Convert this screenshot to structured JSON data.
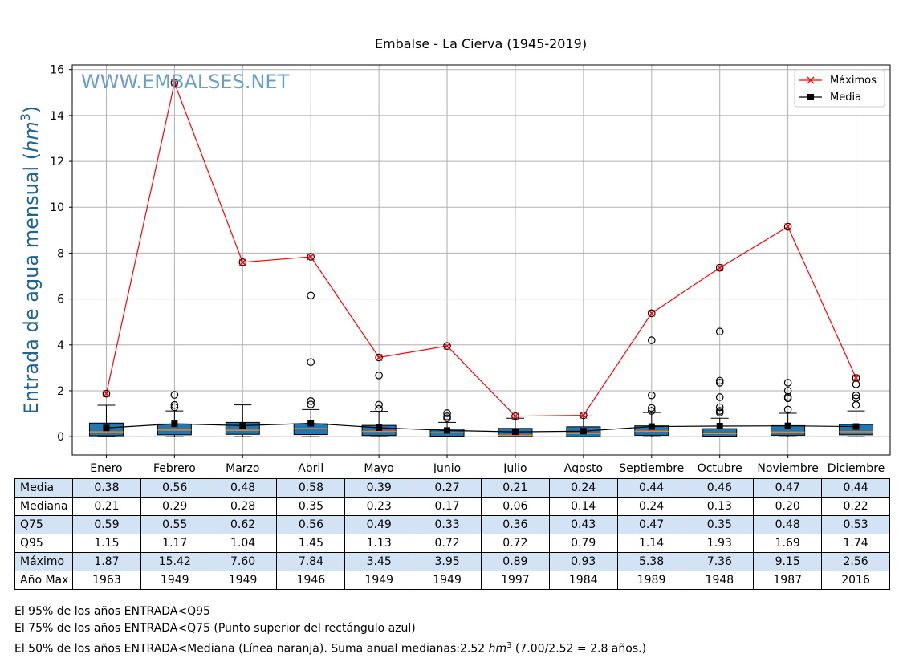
{
  "chart_data": {
    "type": "box",
    "title": "Embalse - La Cierva (1945-2019)",
    "watermark": "WWW.EMBALSES.NET",
    "ylabel_text": "Entrada de agua mensual (",
    "ylabel_unit_base": "hm",
    "ylabel_unit_exp": "3",
    "ylabel_close": ")",
    "xlabel": "",
    "ylim": [
      -0.8,
      16.2
    ],
    "yticks": [
      0,
      2,
      4,
      6,
      8,
      10,
      12,
      14,
      16
    ],
    "grid": true,
    "legend_position": "top-right",
    "categories": [
      "Enero",
      "Febrero",
      "Marzo",
      "Abril",
      "Mayo",
      "Junio",
      "Julio",
      "Agosto",
      "Septiembre",
      "Octubre",
      "Noviembre",
      "Diciembre"
    ],
    "series": [
      {
        "name": "Máximos",
        "color": "#ff0000",
        "marker": "x",
        "values": [
          1.87,
          15.42,
          7.6,
          7.84,
          3.45,
          3.95,
          0.89,
          0.93,
          5.38,
          7.36,
          9.15,
          2.56
        ]
      },
      {
        "name": "Media",
        "color": "#000000",
        "marker": "square",
        "values": [
          0.38,
          0.56,
          0.48,
          0.58,
          0.39,
          0.27,
          0.21,
          0.24,
          0.44,
          0.46,
          0.47,
          0.44
        ]
      }
    ],
    "boxes": [
      {
        "q1": 0.04,
        "median": 0.21,
        "q3": 0.59,
        "whisker_low": 0.0,
        "whisker_high": 1.37,
        "outliers": []
      },
      {
        "q1": 0.08,
        "median": 0.29,
        "q3": 0.55,
        "whisker_low": 0.0,
        "whisker_high": 1.12,
        "outliers": [
          1.28,
          1.38,
          1.82
        ]
      },
      {
        "q1": 0.1,
        "median": 0.28,
        "q3": 0.62,
        "whisker_low": 0.0,
        "whisker_high": 1.38,
        "outliers": []
      },
      {
        "q1": 0.09,
        "median": 0.35,
        "q3": 0.56,
        "whisker_low": 0.0,
        "whisker_high": 1.18,
        "outliers": [
          1.4,
          1.55,
          3.25,
          6.15
        ]
      },
      {
        "q1": 0.05,
        "median": 0.23,
        "q3": 0.49,
        "whisker_low": 0.0,
        "whisker_high": 1.1,
        "outliers": [
          1.21,
          1.39,
          2.67
        ]
      },
      {
        "q1": 0.02,
        "median": 0.17,
        "q3": 0.33,
        "whisker_low": 0.0,
        "whisker_high": 0.62,
        "outliers": [
          0.8,
          0.88,
          1.02
        ]
      },
      {
        "q1": 0.0,
        "median": 0.06,
        "q3": 0.36,
        "whisker_low": 0.0,
        "whisker_high": 0.8,
        "outliers": []
      },
      {
        "q1": 0.0,
        "median": 0.14,
        "q3": 0.43,
        "whisker_low": 0.0,
        "whisker_high": 0.9,
        "outliers": []
      },
      {
        "q1": 0.06,
        "median": 0.24,
        "q3": 0.47,
        "whisker_low": 0.0,
        "whisker_high": 1.05,
        "outliers": [
          1.12,
          1.25,
          1.8,
          4.2
        ]
      },
      {
        "q1": 0.02,
        "median": 0.13,
        "q3": 0.35,
        "whisker_low": 0.0,
        "whisker_high": 0.8,
        "outliers": [
          1.05,
          1.12,
          1.28,
          1.72,
          2.35,
          2.44,
          4.58
        ]
      },
      {
        "q1": 0.06,
        "median": 0.2,
        "q3": 0.48,
        "whisker_low": 0.0,
        "whisker_high": 1.02,
        "outliers": [
          1.18,
          1.67,
          1.73,
          2.0,
          2.35
        ]
      },
      {
        "q1": 0.08,
        "median": 0.22,
        "q3": 0.53,
        "whisker_low": 0.0,
        "whisker_high": 1.12,
        "outliers": [
          1.38,
          1.68,
          1.8,
          2.28
        ]
      }
    ],
    "colors": {
      "box_fill": "#1f77b4",
      "median_line": "#ff7f0e",
      "grid": "#b0b0b0",
      "watermark": "#6a9ec6",
      "ylabel": "#1a6496"
    }
  },
  "table": {
    "rows": [
      {
        "label": "Media",
        "shaded": true,
        "values": [
          "0.38",
          "0.56",
          "0.48",
          "0.58",
          "0.39",
          "0.27",
          "0.21",
          "0.24",
          "0.44",
          "0.46",
          "0.47",
          "0.44"
        ]
      },
      {
        "label": "Mediana",
        "shaded": false,
        "values": [
          "0.21",
          "0.29",
          "0.28",
          "0.35",
          "0.23",
          "0.17",
          "0.06",
          "0.14",
          "0.24",
          "0.13",
          "0.20",
          "0.22"
        ]
      },
      {
        "label": "Q75",
        "shaded": true,
        "values": [
          "0.59",
          "0.55",
          "0.62",
          "0.56",
          "0.49",
          "0.33",
          "0.36",
          "0.43",
          "0.47",
          "0.35",
          "0.48",
          "0.53"
        ]
      },
      {
        "label": "Q95",
        "shaded": false,
        "values": [
          "1.15",
          "1.17",
          "1.04",
          "1.45",
          "1.13",
          "0.72",
          "0.72",
          "0.79",
          "1.14",
          "1.93",
          "1.69",
          "1.74"
        ]
      },
      {
        "label": "Máximo",
        "shaded": true,
        "values": [
          "1.87",
          "15.42",
          "7.60",
          "7.84",
          "3.45",
          "3.95",
          "0.89",
          "0.93",
          "5.38",
          "7.36",
          "9.15",
          "2.56"
        ]
      },
      {
        "label": "Año Max",
        "shaded": false,
        "values": [
          "1963",
          "1949",
          "1949",
          "1946",
          "1949",
          "1949",
          "1997",
          "1984",
          "1989",
          "1948",
          "1987",
          "2016"
        ]
      }
    ]
  },
  "notes": {
    "line1": "El 95% de los años ENTRADA<Q95",
    "line2": "El 75% de los años ENTRADA<Q75 (Punto superior del rectángulo azul)",
    "line3_a": "El 50% de los años ENTRADA<Mediana (Línea naranja). Suma anual medianas:2.52 ",
    "line3_unit_base": "hm",
    "line3_unit_exp": "3",
    "line3_b": " (7.00/2.52 = 2.8 años.)"
  }
}
